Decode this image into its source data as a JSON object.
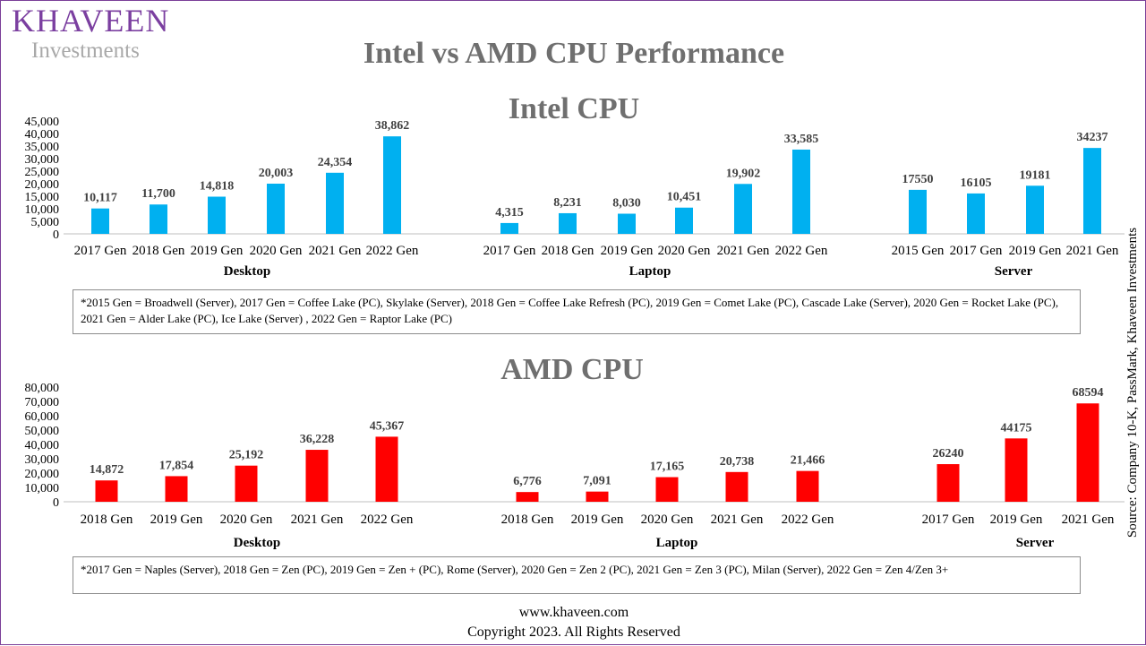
{
  "logo": {
    "brand": "KHAVEEN",
    "tagline": "Investments"
  },
  "main_title": "Intel vs AMD CPU Performance",
  "source_text": "Source: Company 10-K, PassMark, Khaveen Investments",
  "footer": {
    "website": "www.khaveen.com",
    "copyright": "Copyright 2023. All Rights Reserved"
  },
  "colors": {
    "intel": "#00b0f0",
    "amd": "#ff0000",
    "brand": "#7b3fa0"
  },
  "chart_data": [
    {
      "type": "bar",
      "title": "Intel CPU",
      "yticks": [
        0,
        5000,
        10000,
        15000,
        20000,
        25000,
        30000,
        35000,
        40000,
        45000
      ],
      "ytick_labels": [
        "0",
        "5,000",
        "10,000",
        "15,000",
        "20,000",
        "25,000",
        "30,000",
        "35,000",
        "40,000",
        "45,000"
      ],
      "ylim": [
        0,
        45000
      ],
      "grid": false,
      "legend": "none",
      "groups": [
        {
          "name": "Desktop",
          "categories": [
            "2017 Gen",
            "2018 Gen",
            "2019 Gen",
            "2020 Gen",
            "2021 Gen",
            "2022 Gen"
          ],
          "values": [
            10117,
            11700,
            14818,
            20003,
            24354,
            38862
          ],
          "labels": [
            "10,117",
            "11,700",
            "14,818",
            "20,003",
            "24,354",
            "38,862"
          ]
        },
        {
          "name": "Laptop",
          "categories": [
            "2017 Gen",
            "2018 Gen",
            "2019 Gen",
            "2020 Gen",
            "2021 Gen",
            "2022 Gen"
          ],
          "values": [
            4315,
            8231,
            8030,
            10451,
            19902,
            33585
          ],
          "labels": [
            "4,315",
            "8,231",
            "8,030",
            "10,451",
            "19,902",
            "33,585"
          ]
        },
        {
          "name": "Server",
          "categories": [
            "2015 Gen",
            "2017 Gen",
            "2019 Gen",
            "2021 Gen"
          ],
          "values": [
            17550,
            16105,
            19181,
            34237
          ],
          "labels": [
            "17550",
            "16105",
            "19181",
            "34237"
          ]
        }
      ],
      "note": "*2015 Gen  = Broadwell (Server), 2017 Gen = Coffee Lake (PC), Skylake (Server), 2018 Gen = Coffee Lake Refresh (PC), 2019 Gen = Comet Lake (PC), Cascade Lake (Server), 2020 Gen = Rocket Lake (PC), 2021 Gen = Alder Lake (PC),  Ice Lake (Server) , 2022 Gen = Raptor Lake (PC)"
    },
    {
      "type": "bar",
      "title": "AMD CPU",
      "yticks": [
        0,
        10000,
        20000,
        30000,
        40000,
        50000,
        60000,
        70000,
        80000
      ],
      "ytick_labels": [
        "0",
        "10,000",
        "20,000",
        "30,000",
        "40,000",
        "50,000",
        "60,000",
        "70,000",
        "80,000"
      ],
      "ylim": [
        0,
        80000
      ],
      "grid": false,
      "legend": "none",
      "groups": [
        {
          "name": "Desktop",
          "categories": [
            "2018 Gen",
            "2019 Gen",
            "2020 Gen",
            "2021 Gen",
            "2022 Gen"
          ],
          "values": [
            14872,
            17854,
            25192,
            36228,
            45367
          ],
          "labels": [
            "14,872",
            "17,854",
            "25,192",
            "36,228",
            "45,367"
          ]
        },
        {
          "name": "Laptop",
          "categories": [
            "2018 Gen",
            "2019 Gen",
            "2020 Gen",
            "2021 Gen",
            "2022 Gen"
          ],
          "values": [
            6776,
            7091,
            17165,
            20738,
            21466
          ],
          "labels": [
            "6,776",
            "7,091",
            "17,165",
            "20,738",
            "21,466"
          ]
        },
        {
          "name": "Server",
          "categories": [
            "2017 Gen",
            "2019 Gen",
            "2021 Gen"
          ],
          "values": [
            26240,
            44175,
            68594
          ],
          "labels": [
            "26240",
            "44175",
            "68594"
          ]
        }
      ],
      "note": "*2017 Gen = Naples (Server), 2018 Gen = Zen (PC), 2019 Gen = Zen + (PC), Rome (Server), 2020 Gen = Zen 2 (PC), 2021 Gen = Zen 3 (PC),  Milan (Server), 2022 Gen = Zen 4/Zen 3+"
    }
  ]
}
